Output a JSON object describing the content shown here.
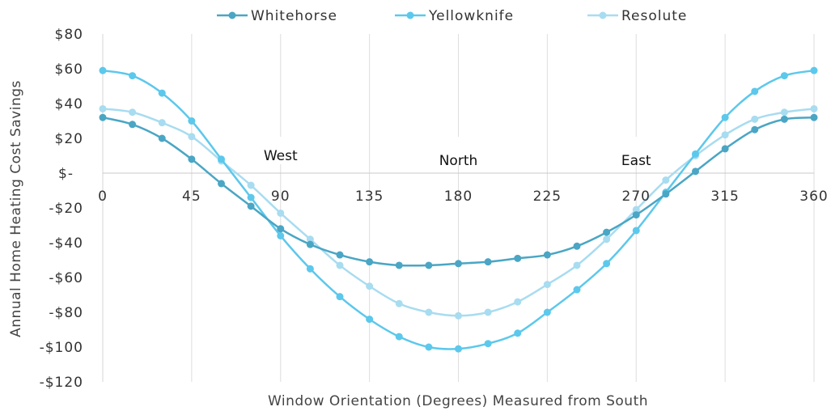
{
  "chart_data": {
    "type": "line",
    "xlabel": "Window Orientation (Degrees) Measured from South",
    "ylabel": "Annual Home Heating Cost Savings",
    "xlim": [
      0,
      360
    ],
    "ylim": [
      -120,
      80
    ],
    "x_ticks": [
      "0",
      "45",
      "90",
      "135",
      "180",
      "225",
      "270",
      "315",
      "360"
    ],
    "y_ticks": [
      "$80",
      "$60",
      "$40",
      "$20",
      "$-",
      "-$20",
      "-$40",
      "-$60",
      "-$80",
      "-$100",
      "-$120"
    ],
    "grid": "vertical",
    "legend_position": "top",
    "x": [
      0,
      15,
      30,
      45,
      60,
      75,
      90,
      105,
      120,
      135,
      150,
      165,
      180,
      195,
      210,
      225,
      240,
      255,
      270,
      285,
      300,
      315,
      330,
      345,
      360
    ],
    "series": [
      {
        "name": "Whitehorse",
        "color": "#4aa6c4",
        "values": [
          32,
          28,
          20,
          8,
          -6,
          -19,
          -32,
          -41,
          -47,
          -51,
          -53,
          -53,
          -52,
          -51,
          -49,
          -47,
          -42,
          -34,
          -24,
          -12,
          1,
          14,
          25,
          31,
          32
        ]
      },
      {
        "name": "Yellowknife",
        "color": "#5cc8ec",
        "values": [
          59,
          56,
          46,
          30,
          8,
          -14,
          -36,
          -55,
          -71,
          -84,
          -94,
          -100,
          -101,
          -98,
          -92,
          -80,
          -67,
          -52,
          -33,
          -11,
          11,
          32,
          47,
          56,
          59
        ]
      },
      {
        "name": "Resolute",
        "color": "#a8dcf0",
        "values": [
          37,
          35,
          29,
          21,
          7,
          -7,
          -23,
          -38,
          -53,
          -65,
          -75,
          -80,
          -82,
          -80,
          -74,
          -64,
          -53,
          -38,
          -21,
          -4,
          10,
          22,
          31,
          35,
          37
        ]
      }
    ],
    "annotations": [
      {
        "text": "West",
        "x": 90
      },
      {
        "text": "North",
        "x": 180
      },
      {
        "text": "East",
        "x": 270
      }
    ]
  }
}
